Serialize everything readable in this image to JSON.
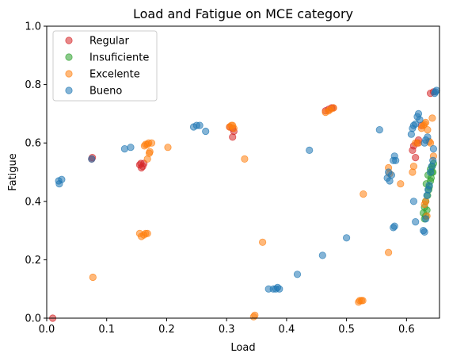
{
  "chart_data": {
    "type": "scatter",
    "title": "Load and Fatigue on MCE category",
    "xlabel": "Load",
    "ylabel": "Fatigue",
    "xlim": [
      0.0,
      0.655
    ],
    "ylim": [
      0.0,
      1.0
    ],
    "xticks": [
      "0.0",
      "0.1",
      "0.2",
      "0.3",
      "0.4",
      "0.5",
      "0.6"
    ],
    "yticks": [
      "0.0",
      "0.2",
      "0.4",
      "0.6",
      "0.8",
      "1.0"
    ],
    "grid": false,
    "legend_position": "top-left",
    "series": [
      {
        "name": "Regular",
        "color": "#d62728",
        "x": [
          0.01,
          0.075,
          0.076,
          0.155,
          0.157,
          0.16,
          0.158,
          0.162,
          0.305,
          0.31,
          0.312,
          0.31,
          0.465,
          0.47,
          0.475,
          0.478,
          0.61,
          0.612,
          0.615,
          0.618,
          0.62,
          0.625,
          0.64,
          0.645
        ],
        "y": [
          0.0,
          0.545,
          0.55,
          0.525,
          0.53,
          0.52,
          0.515,
          0.53,
          0.655,
          0.65,
          0.64,
          0.62,
          0.71,
          0.715,
          0.72,
          0.72,
          0.575,
          0.59,
          0.55,
          0.6,
          0.61,
          0.66,
          0.77,
          0.775
        ]
      },
      {
        "name": "Insuficiente",
        "color": "#2ca02c",
        "x": [
          0.628,
          0.63,
          0.632,
          0.635,
          0.638,
          0.64,
          0.642,
          0.643,
          0.645,
          0.64,
          0.636,
          0.633,
          0.63,
          0.632,
          0.634,
          0.637,
          0.641,
          0.644
        ],
        "y": [
          0.36,
          0.38,
          0.4,
          0.42,
          0.45,
          0.47,
          0.5,
          0.52,
          0.53,
          0.51,
          0.49,
          0.46,
          0.34,
          0.35,
          0.37,
          0.44,
          0.48,
          0.5
        ]
      },
      {
        "name": "Excelente",
        "color": "#ff7f0e",
        "x": [
          0.077,
          0.155,
          0.158,
          0.162,
          0.165,
          0.168,
          0.163,
          0.165,
          0.168,
          0.17,
          0.172,
          0.175,
          0.168,
          0.171,
          0.202,
          0.305,
          0.308,
          0.31,
          0.312,
          0.33,
          0.345,
          0.347,
          0.36,
          0.465,
          0.47,
          0.473,
          0.478,
          0.52,
          0.522,
          0.525,
          0.527,
          0.528,
          0.57,
          0.57,
          0.572,
          0.59,
          0.61,
          0.612,
          0.615,
          0.62,
          0.625,
          0.628,
          0.63,
          0.632,
          0.635,
          0.638,
          0.64,
          0.643,
          0.645,
          0.63,
          0.632,
          0.634
        ],
        "y": [
          0.14,
          0.29,
          0.28,
          0.285,
          0.29,
          0.29,
          0.59,
          0.595,
          0.595,
          0.6,
          0.57,
          0.6,
          0.545,
          0.565,
          0.585,
          0.655,
          0.66,
          0.66,
          0.65,
          0.545,
          0.005,
          0.01,
          0.26,
          0.705,
          0.71,
          0.715,
          0.72,
          0.055,
          0.06,
          0.06,
          0.06,
          0.425,
          0.225,
          0.515,
          0.495,
          0.46,
          0.5,
          0.52,
          0.6,
          0.6,
          0.65,
          0.66,
          0.665,
          0.67,
          0.645,
          0.605,
          0.6,
          0.685,
          0.555,
          0.39,
          0.4,
          0.35
        ]
      },
      {
        "name": "Bueno",
        "color": "#1f77b4",
        "x": [
          0.02,
          0.021,
          0.025,
          0.075,
          0.13,
          0.14,
          0.245,
          0.25,
          0.255,
          0.265,
          0.37,
          0.378,
          0.382,
          0.385,
          0.388,
          0.418,
          0.438,
          0.46,
          0.5,
          0.555,
          0.568,
          0.57,
          0.572,
          0.575,
          0.578,
          0.58,
          0.578,
          0.58,
          0.582,
          0.608,
          0.61,
          0.612,
          0.615,
          0.618,
          0.62,
          0.622,
          0.628,
          0.63,
          0.632,
          0.634,
          0.636,
          0.638,
          0.64,
          0.642,
          0.644,
          0.645,
          0.647,
          0.648,
          0.65,
          0.612,
          0.615,
          0.63,
          0.632,
          0.635
        ],
        "y": [
          0.47,
          0.46,
          0.475,
          0.545,
          0.58,
          0.585,
          0.655,
          0.66,
          0.66,
          0.64,
          0.1,
          0.1,
          0.1,
          0.105,
          0.1,
          0.15,
          0.575,
          0.215,
          0.275,
          0.645,
          0.48,
          0.5,
          0.47,
          0.49,
          0.31,
          0.315,
          0.54,
          0.555,
          0.54,
          0.63,
          0.65,
          0.66,
          0.665,
          0.69,
          0.7,
          0.68,
          0.3,
          0.295,
          0.34,
          0.42,
          0.44,
          0.455,
          0.5,
          0.52,
          0.54,
          0.58,
          0.77,
          0.775,
          0.78,
          0.4,
          0.33,
          0.6,
          0.61,
          0.62
        ]
      }
    ]
  }
}
